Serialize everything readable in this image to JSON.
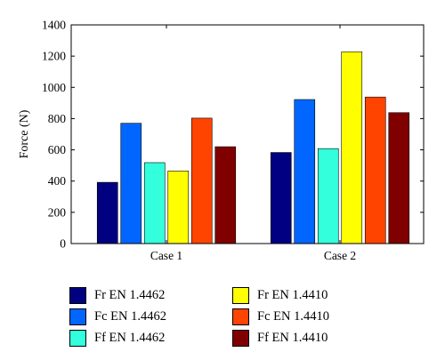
{
  "chart_data": {
    "type": "bar",
    "title": "",
    "xlabel": "",
    "ylabel": "Force (N)",
    "ylim": [
      0,
      1400
    ],
    "yticks": [
      "0",
      "200",
      "400",
      "600",
      "800",
      "1000",
      "1200",
      "1400"
    ],
    "categories": [
      "Case 1",
      "Case 2"
    ],
    "grid": false,
    "legend_position": "bottom",
    "series": [
      {
        "name": "Fr EN 1.4462",
        "color": "#000080",
        "values": [
          392,
          583
        ]
      },
      {
        "name": "Fc EN 1.4462",
        "color": "#0066ff",
        "values": [
          770,
          922
        ]
      },
      {
        "name": "Ff EN 1.4462",
        "color": "#33ffdd",
        "values": [
          518,
          608
        ]
      },
      {
        "name": "Fr EN 1.4410",
        "color": "#ffff00",
        "values": [
          465,
          1228
        ]
      },
      {
        "name": "Fc EN 1.4410",
        "color": "#ff4400",
        "values": [
          803,
          938
        ]
      },
      {
        "name": "Ff EN 1.4410",
        "color": "#800000",
        "values": [
          620,
          838
        ]
      }
    ]
  }
}
